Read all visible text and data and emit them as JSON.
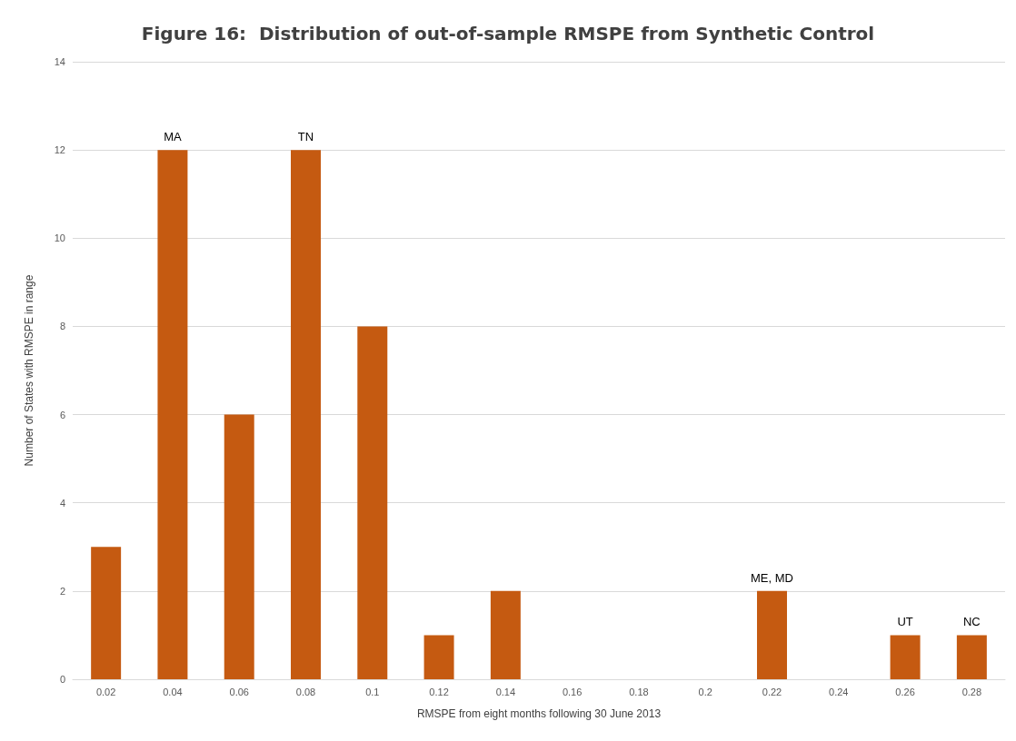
{
  "chart_data": {
    "type": "bar",
    "title": "Figure 16:  Distribution of out-of-sample RMSPE from Synthetic Control",
    "xlabel": "RMSPE from eight months following 30 June 2013",
    "ylabel": "Number of States with RMSPE in range",
    "categories": [
      "0.02",
      "0.04",
      "0.06",
      "0.08",
      "0.1",
      "0.12",
      "0.14",
      "0.16",
      "0.18",
      "0.2",
      "0.22",
      "0.24",
      "0.26",
      "0.28"
    ],
    "values": [
      3,
      12,
      6,
      12,
      8,
      1,
      2,
      0,
      0,
      0,
      2,
      0,
      1,
      1
    ],
    "color": "#c55a11",
    "ylim": [
      0,
      14
    ],
    "yticks": [
      0,
      2,
      4,
      6,
      8,
      10,
      12,
      14
    ],
    "grid": "y",
    "annotations": [
      {
        "text": "MA",
        "x": "0.04",
        "y": 12
      },
      {
        "text": "TN",
        "x": "0.08",
        "y": 12
      },
      {
        "text": "ME, MD",
        "x": "0.22",
        "y": 2
      },
      {
        "text": "UT",
        "x": "0.26",
        "y": 1
      },
      {
        "text": "NC",
        "x": "0.28",
        "y": 1
      }
    ]
  }
}
